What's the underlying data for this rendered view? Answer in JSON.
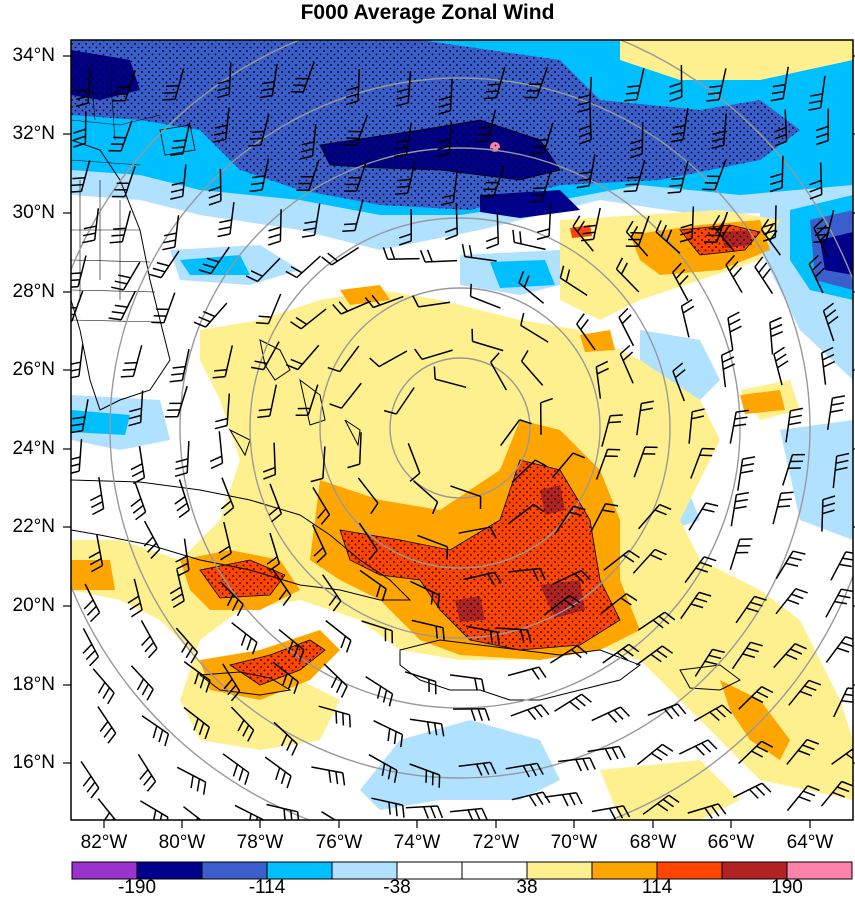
{
  "title": "F000 Average Zonal Wind",
  "lat_labels": [
    "34°N",
    "32°N",
    "30°N",
    "28°N",
    "26°N",
    "24°N",
    "22°N",
    "20°N",
    "18°N",
    "16°N"
  ],
  "lon_labels": [
    "82°W",
    "80°W",
    "78°W",
    "76°W",
    "74°W",
    "72°W",
    "70°W",
    "68°W",
    "66°W",
    "64°W"
  ],
  "colorbar": {
    "colors": [
      "#9a32cd",
      "#00008b",
      "#3a5fcd",
      "#00bfff",
      "#b0e2ff",
      "#ffffff",
      "#ffffff",
      "#fff08f",
      "#ffa500",
      "#ff4500",
      "#b22222",
      "#ff82ab"
    ],
    "labels": [
      "-190",
      "-114",
      "-38",
      "38",
      "114",
      "190"
    ]
  },
  "palette": {
    "dark_blue": "#00008b",
    "blue": "#3a5fcd",
    "light_blue": "#00bfff",
    "pale_blue": "#b0e2ff",
    "yellow": "#fff08f",
    "orange": "#ffa500",
    "red_orange": "#ff4500",
    "dark_red": "#b22222"
  }
}
